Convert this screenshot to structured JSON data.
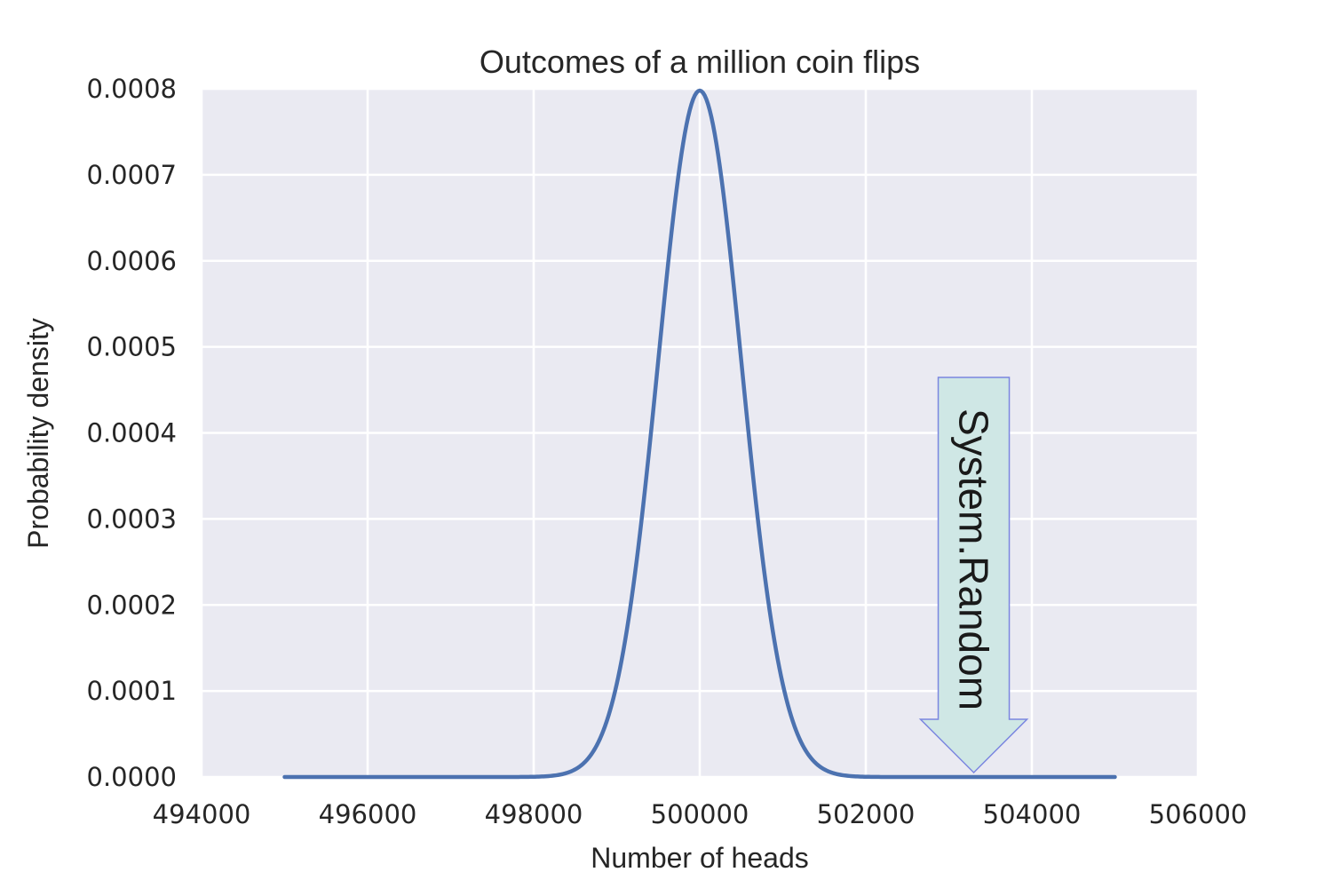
{
  "chart_data": {
    "type": "line",
    "title": "Outcomes of a million coin flips",
    "xlabel": "Number of heads",
    "ylabel": "Probability density",
    "xlim": [
      494000,
      506000
    ],
    "ylim": [
      0,
      0.0008
    ],
    "x_ticks": [
      "494000",
      "496000",
      "498000",
      "500000",
      "502000",
      "504000",
      "506000"
    ],
    "y_ticks": [
      "0.0000",
      "0.0001",
      "0.0002",
      "0.0003",
      "0.0004",
      "0.0005",
      "0.0006",
      "0.0007",
      "0.0008"
    ],
    "grid": true,
    "series": [
      {
        "color": "#4c72b0",
        "distribution": "normal",
        "mean": 500000,
        "std": 500,
        "x_range": [
          495000,
          505000
        ]
      }
    ],
    "annotation": {
      "text": "System.Random",
      "x": 503300,
      "y": 0,
      "fill": "#cfe7e5",
      "edge": "#7b86e0"
    },
    "colors": {
      "plot_bg": "#eaeaf2",
      "grid": "#ffffff",
      "line": "#4c72b0"
    }
  }
}
